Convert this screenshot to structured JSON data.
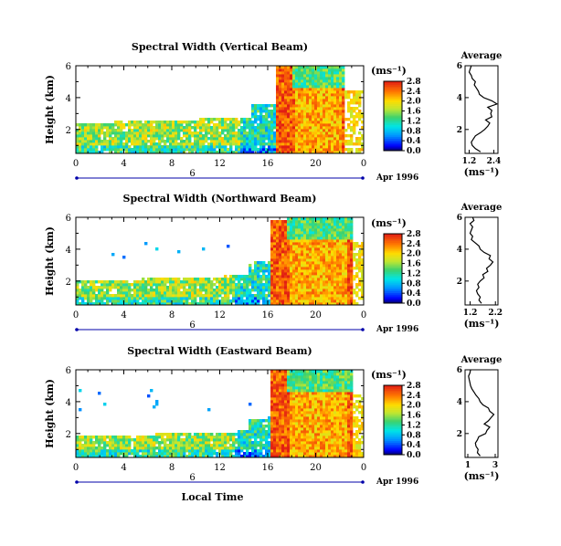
{
  "chart_data": [
    {
      "type": "heatmap",
      "title": "Spectral Width (Vertical Beam)",
      "ylabel": "Height (km)",
      "x_ticks": [
        "0",
        "4",
        "8",
        "12",
        "16",
        "20",
        "0"
      ],
      "y_ticks": [
        "2",
        "4",
        "6"
      ],
      "xlim": [
        0,
        24
      ],
      "ylim": [
        0.5,
        6
      ],
      "day_marker": "6",
      "date_label": "Apr 1996",
      "colorbar": {
        "unit_label": "(ms⁻¹)",
        "ticks": [
          "0.0",
          "0.4",
          "0.8",
          "1.2",
          "1.6",
          "2.0",
          "2.4",
          "2.8"
        ],
        "range": [
          0,
          2.8
        ]
      },
      "field": {
        "rain_start": 16.7,
        "rain_end": 22.5,
        "rain_top": 6.0,
        "clear_top": 2.4,
        "noise_top": 2.8
      },
      "profile": {
        "title": "Average",
        "xlabel": "(ms⁻¹)",
        "x_ticks": [
          "1.2",
          "2.4"
        ],
        "y_ticks": [
          "2",
          "4",
          "6"
        ],
        "xlim": [
          1.0,
          2.6
        ],
        "height": [
          0.6,
          0.8,
          1.0,
          1.2,
          1.4,
          1.6,
          1.8,
          2.0,
          2.2,
          2.4,
          2.6,
          2.8,
          3.0,
          3.2,
          3.4,
          3.6,
          3.8,
          4.0,
          4.2,
          4.4,
          4.6,
          4.8,
          5.0,
          5.2,
          5.4,
          5.6,
          5.8,
          6.0
        ],
        "width": [
          1.75,
          1.5,
          1.35,
          1.3,
          1.4,
          1.5,
          1.75,
          1.95,
          2.1,
          2.2,
          2.0,
          2.3,
          2.25,
          2.3,
          2.1,
          2.55,
          2.3,
          1.9,
          1.7,
          1.65,
          1.55,
          1.45,
          1.5,
          1.35,
          1.3,
          1.2,
          1.25,
          1.3
        ]
      }
    },
    {
      "type": "heatmap",
      "title": "Spectral Width (Northward Beam)",
      "ylabel": "Height (km)",
      "x_ticks": [
        "0",
        "4",
        "8",
        "12",
        "16",
        "20",
        "0"
      ],
      "y_ticks": [
        "2",
        "4",
        "6"
      ],
      "xlim": [
        0,
        24
      ],
      "ylim": [
        0.5,
        6
      ],
      "day_marker": "6",
      "date_label": "Apr 1996",
      "colorbar": {
        "unit_label": "(ms⁻¹)",
        "ticks": [
          "0.0",
          "0.4",
          "0.8",
          "1.2",
          "1.6",
          "2.0",
          "2.4",
          "2.8"
        ],
        "range": [
          0,
          2.8
        ]
      },
      "field": {
        "rain_start": 16.3,
        "rain_end": 23.0,
        "rain_top": 5.9,
        "clear_top": 2.0,
        "noise_top": 4.6
      },
      "profile": {
        "title": "Average",
        "xlabel": "(ms⁻¹)",
        "x_ticks": [
          "1.2",
          "2.2"
        ],
        "y_ticks": [
          "2",
          "4",
          "6"
        ],
        "xlim": [
          1.0,
          2.3
        ],
        "height": [
          0.6,
          0.8,
          1.0,
          1.2,
          1.4,
          1.6,
          1.8,
          2.0,
          2.2,
          2.4,
          2.6,
          2.8,
          3.0,
          3.2,
          3.4,
          3.6,
          3.8,
          4.0,
          4.2,
          4.4,
          4.6,
          4.8,
          5.0,
          5.2,
          5.4,
          5.6,
          5.8,
          6.0
        ],
        "width": [
          1.65,
          1.55,
          1.6,
          1.5,
          1.45,
          1.55,
          1.5,
          1.6,
          1.75,
          1.7,
          1.9,
          1.85,
          2.0,
          2.1,
          1.95,
          2.0,
          1.75,
          1.6,
          1.55,
          1.4,
          1.25,
          1.3,
          1.2,
          1.25,
          1.3,
          1.2,
          1.35,
          1.3
        ]
      }
    },
    {
      "type": "heatmap",
      "title": "Spectral Width (Eastward Beam)",
      "ylabel": "Height (km)",
      "xlabel": "Local Time",
      "x_ticks": [
        "0",
        "4",
        "8",
        "12",
        "16",
        "20",
        "0"
      ],
      "y_ticks": [
        "2",
        "4",
        "6"
      ],
      "xlim": [
        0,
        24
      ],
      "ylim": [
        0.5,
        6
      ],
      "day_marker": "6",
      "date_label": "Apr 1996",
      "colorbar": {
        "unit_label": "(ms⁻¹)",
        "ticks": [
          "0.0",
          "0.4",
          "0.8",
          "1.2",
          "1.6",
          "2.0",
          "2.4",
          "2.8"
        ],
        "range": [
          0,
          2.8
        ]
      },
      "field": {
        "rain_start": 16.3,
        "rain_end": 23.0,
        "rain_top": 6.0,
        "clear_top": 1.8,
        "noise_top": 4.8
      },
      "profile": {
        "title": "Average",
        "xlabel": "(ms⁻¹)",
        "x_ticks": [
          "1",
          "3"
        ],
        "y_ticks": [
          "2",
          "4",
          "6"
        ],
        "xlim": [
          0.8,
          3.2
        ],
        "height": [
          0.6,
          0.8,
          1.0,
          1.2,
          1.4,
          1.6,
          1.8,
          2.0,
          2.2,
          2.4,
          2.6,
          2.8,
          3.0,
          3.2,
          3.4,
          3.6,
          3.8,
          4.0,
          4.2,
          4.4,
          4.6,
          4.8,
          5.0,
          5.2,
          5.4,
          5.6,
          5.8,
          6.0
        ],
        "width": [
          1.9,
          1.7,
          1.75,
          1.6,
          1.55,
          1.7,
          1.8,
          2.3,
          2.4,
          2.6,
          2.2,
          2.5,
          2.7,
          2.9,
          2.6,
          2.5,
          2.1,
          1.9,
          1.8,
          1.6,
          1.45,
          1.3,
          1.2,
          1.15,
          1.1,
          1.05,
          1.15,
          1.2
        ]
      }
    }
  ]
}
